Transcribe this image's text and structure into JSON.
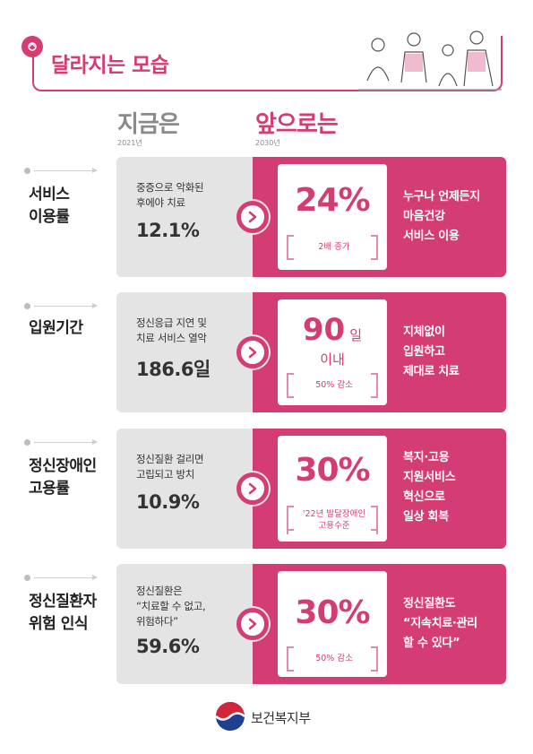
{
  "header": {
    "title": "달라지는 모습"
  },
  "columns": {
    "now": {
      "title": "지금은",
      "year": "2021년"
    },
    "future": {
      "title": "앞으로는",
      "year": "2030년"
    }
  },
  "rows": [
    {
      "label": "서비스\n이용률",
      "now_desc": "중증으로 악화된\n후에야 치료",
      "now_value": "12.1%",
      "future_num": "24%",
      "future_unit": "",
      "future_sub": "",
      "future_note": "2배 증가",
      "future_desc": "누구나 언제든지\n마음건강\n서비스 이용"
    },
    {
      "label": "입원기간",
      "now_desc": "정신응급 지연 및\n치료 서비스 열악",
      "now_value": "186.6일",
      "future_num": "90",
      "future_unit": "일",
      "future_sub": "이내",
      "future_note": "50% 감소",
      "future_desc": "지체없이\n입원하고\n제대로 치료"
    },
    {
      "label": "정신장애인\n고용률",
      "now_desc": "정신질환 걸리면\n고립되고 방치",
      "now_value": "10.9%",
      "future_num": "30%",
      "future_unit": "",
      "future_sub": "",
      "future_note": "'22년 발달장애인\n고용수준",
      "future_desc": "복지·고용\n지원서비스\n혁신으로\n일상 회복"
    },
    {
      "label": "정신질환자\n위험 인식",
      "now_desc": "정신질환은\n“치료할 수 없고,\n위험하다”",
      "now_value": "59.6%",
      "future_num": "30%",
      "future_unit": "",
      "future_sub": "",
      "future_note": "50% 감소",
      "future_desc": "정신질환도\n“지속치료·관리\n할 수 있다”"
    }
  ],
  "footer": {
    "ministry": "보건복지부"
  },
  "colors": {
    "accent": "#d43d74",
    "gray_panel": "#e4e4e4",
    "text_dark": "#333333"
  },
  "icons": [
    "emblem-icon",
    "chevron-right-icon",
    "people-illustration",
    "government-logo-icon"
  ]
}
